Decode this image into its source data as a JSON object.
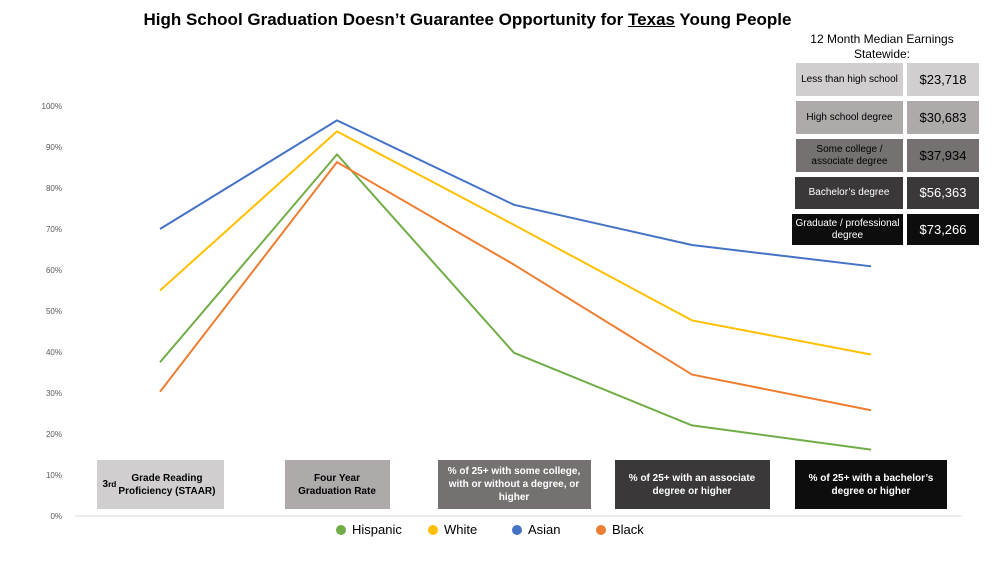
{
  "title": {
    "before": "High School Graduation Doesn’t Guarantee Opportunity for ",
    "underlined": "Texas",
    "after": " Young People"
  },
  "earnings": {
    "heading": "12 Month Median Earnings Statewide:",
    "rows": [
      {
        "label": "Less than high school",
        "value": "$23,718",
        "bg": "#d0cece",
        "fg": "#000000"
      },
      {
        "label": "High school degree",
        "value": "$30,683",
        "bg": "#aeaaaa",
        "fg": "#000000"
      },
      {
        "label": "Some college / associate degree",
        "value": "$37,934",
        "bg": "#767171",
        "fg": "#000000"
      },
      {
        "label": "Bachelor’s degree",
        "value": "$56,363",
        "bg": "#3a3838",
        "fg": "#ffffff"
      },
      {
        "label": "Graduate / professional degree",
        "value": "$73,266",
        "bg": "#0d0d0d",
        "fg": "#ffffff"
      }
    ]
  },
  "chart_data": {
    "type": "line",
    "categories": [
      "3rd Grade Reading Proficiency (STAAR)",
      "Four Year Graduation Rate",
      "% of 25+ with some college, with or without a degree, or higher",
      "% of 25+ with an associate degree or higher",
      "% of 25+ with a bachelor's degree or higher"
    ],
    "category_label_html": [
      "3<sup>rd</sup> Grade Reading Proficiency (STAAR)",
      "Four Year Graduation Rate",
      "% of 25+ with some college, with or without a degree, or higher",
      "% of 25+ with an associate degree or higher",
      "% of 25+ with a bachelor’s degree or higher"
    ],
    "category_box_colors": [
      "#d0cece",
      "#aeaaaa",
      "#767171",
      "#3a3838",
      "#0d0d0d"
    ],
    "category_text_colors": [
      "#000000",
      "#000000",
      "#ffffff",
      "#ffffff",
      "#ffffff"
    ],
    "series": [
      {
        "name": "Hispanic",
        "color": "#70ad47",
        "values": [
          37.5,
          88.2,
          39.8,
          22.1,
          16.2
        ]
      },
      {
        "name": "White",
        "color": "#ffc000",
        "values": [
          55.0,
          93.8,
          71.0,
          47.7,
          39.4
        ]
      },
      {
        "name": "Asian",
        "color": "#4472c4",
        "values": [
          70.0,
          96.5,
          75.9,
          66.1,
          60.9
        ]
      },
      {
        "name": "Black",
        "color": "#ed7d31",
        "values": [
          30.3,
          86.3,
          61.3,
          34.5,
          25.8
        ]
      }
    ],
    "ylim": [
      0,
      100
    ],
    "yticks": [
      "0%",
      "10%",
      "20%",
      "30%",
      "40%",
      "50%",
      "60%",
      "70%",
      "80%",
      "90%",
      "100%"
    ],
    "grid": false,
    "legend": "bottom"
  }
}
